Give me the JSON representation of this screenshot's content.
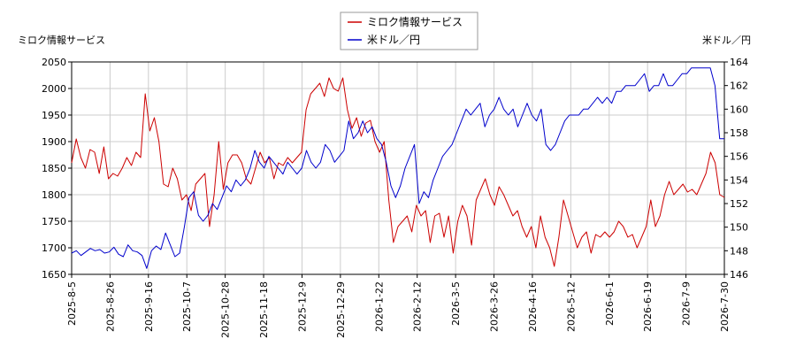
{
  "chart_data": {
    "type": "line",
    "legend_position": "top-center",
    "grid": true,
    "colors": {
      "series1": "#cc0000",
      "series2": "#0000cc",
      "grid": "#cccccc",
      "axis": "#000000"
    },
    "left_axis_title": "ミロク情報サービス",
    "right_axis_title": "米ドル／円",
    "left_ylim": [
      1650,
      2050
    ],
    "left_ticks": [
      "1650",
      "1700",
      "1750",
      "1800",
      "1850",
      "1900",
      "1950",
      "2000",
      "2050"
    ],
    "right_ylim": [
      146,
      164
    ],
    "right_ticks": [
      "146",
      "148",
      "150",
      "152",
      "154",
      "156",
      "158",
      "160",
      "162",
      "164"
    ],
    "x_tick_labels": [
      "2025-8-5",
      "2025-8-26",
      "2025-9-16",
      "2025-10-7",
      "2025-10-28",
      "2025-11-18",
      "2025-12-9",
      "2025-12-29",
      "2026-1-22",
      "2026-2-12",
      "2026-3-5",
      "2026-3-26",
      "2026-4-16",
      "2026-5-12",
      "2026-6-1",
      "2026-6-19",
      "2026-7-9",
      "2026-7-30"
    ],
    "series": [
      {
        "name": "ミロク情報サービス",
        "axis": "left",
        "values": [
          1860,
          1905,
          1870,
          1850,
          1885,
          1880,
          1840,
          1890,
          1830,
          1840,
          1835,
          1850,
          1870,
          1855,
          1880,
          1870,
          1990,
          1920,
          1945,
          1900,
          1820,
          1815,
          1850,
          1830,
          1790,
          1800,
          1770,
          1820,
          1830,
          1840,
          1740,
          1800,
          1900,
          1810,
          1860,
          1875,
          1875,
          1860,
          1830,
          1820,
          1850,
          1880,
          1860,
          1870,
          1830,
          1860,
          1855,
          1870,
          1860,
          1870,
          1880,
          1960,
          1990,
          2000,
          2010,
          1985,
          2020,
          2000,
          1995,
          2020,
          1960,
          1925,
          1945,
          1910,
          1935,
          1940,
          1900,
          1880,
          1900,
          1790,
          1710,
          1740,
          1750,
          1760,
          1730,
          1780,
          1760,
          1770,
          1710,
          1760,
          1765,
          1720,
          1760,
          1690,
          1750,
          1780,
          1760,
          1705,
          1790,
          1810,
          1830,
          1800,
          1780,
          1815,
          1800,
          1780,
          1760,
          1770,
          1740,
          1720,
          1740,
          1700,
          1760,
          1720,
          1700,
          1665,
          1720,
          1790,
          1760,
          1730,
          1700,
          1720,
          1730,
          1690,
          1725,
          1720,
          1730,
          1720,
          1730,
          1750,
          1740,
          1720,
          1725,
          1700,
          1720,
          1740,
          1790,
          1740,
          1760,
          1800,
          1825,
          1800,
          1810,
          1820,
          1805,
          1810,
          1800,
          1820,
          1840,
          1880,
          1860,
          1800,
          1795
        ]
      },
      {
        "name": "米ドル／円",
        "axis": "right",
        "values": [
          147.8,
          148.0,
          147.6,
          147.9,
          148.2,
          148.0,
          148.1,
          147.8,
          147.9,
          148.3,
          147.7,
          147.5,
          148.5,
          148.0,
          147.9,
          147.6,
          146.5,
          148.0,
          148.4,
          148.1,
          149.5,
          148.5,
          147.5,
          147.8,
          150.0,
          152.5,
          153.0,
          151.0,
          150.5,
          151.0,
          152.0,
          151.5,
          152.5,
          153.5,
          153.0,
          154.0,
          153.5,
          154.0,
          155.0,
          156.5,
          155.5,
          155.0,
          156.0,
          155.5,
          155.0,
          154.5,
          155.5,
          155.0,
          154.5,
          155.0,
          156.5,
          155.5,
          155.0,
          155.5,
          157.0,
          156.5,
          155.5,
          156.0,
          156.5,
          159.0,
          157.5,
          158.0,
          159.0,
          158.0,
          158.5,
          157.5,
          157.0,
          155.5,
          153.5,
          152.5,
          153.5,
          155.0,
          156.0,
          157.0,
          152.0,
          153.0,
          152.5,
          154.0,
          155.0,
          156.0,
          156.5,
          157.0,
          158.0,
          159.0,
          160.0,
          159.5,
          160.0,
          160.5,
          158.5,
          159.5,
          160.0,
          161.0,
          160.0,
          159.5,
          160.0,
          158.5,
          159.5,
          160.5,
          159.5,
          159.0,
          160.0,
          157.0,
          156.5,
          157.0,
          158.0,
          159.0,
          159.5,
          159.5,
          159.5,
          160.0,
          160.0,
          160.5,
          161.0,
          160.5,
          161.0,
          160.5,
          161.5,
          161.5,
          162.0,
          162.0,
          162.0,
          162.5,
          163.0,
          161.5,
          162.0,
          162.0,
          163.0,
          162.0,
          162.0,
          162.5,
          163.0,
          163.0,
          163.5,
          163.5,
          163.5,
          163.5,
          163.5,
          162.0,
          157.5,
          157.5
        ]
      }
    ]
  }
}
